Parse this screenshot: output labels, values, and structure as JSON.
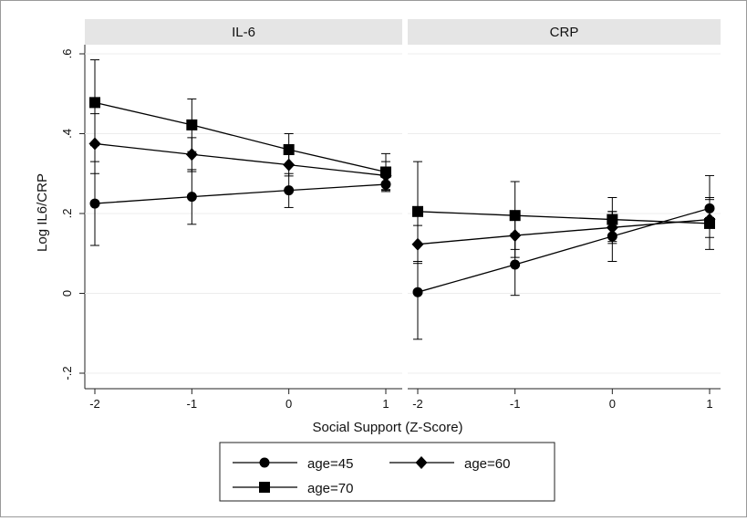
{
  "chart_data": {
    "type": "line",
    "ylabel": "Log IL6/CRP",
    "xlabel": "Social Support (Z-Score)",
    "x": [
      -2,
      -1,
      0,
      1
    ],
    "x_ticks": [
      "-2",
      "-1",
      "0",
      "1"
    ],
    "y_ticks": [
      {
        "value": -0.2,
        "label": "-.2"
      },
      {
        "value": 0,
        "label": "0"
      },
      {
        "value": 0.2,
        "label": ".2"
      },
      {
        "value": 0.4,
        "label": ".4"
      },
      {
        "value": 0.6,
        "label": ".6"
      }
    ],
    "ylim": [
      -0.2,
      0.6
    ],
    "grid": true,
    "legend_position": "bottom",
    "legend": [
      {
        "label": "age=45",
        "marker": "circle"
      },
      {
        "label": "age=60",
        "marker": "diamond"
      },
      {
        "label": "age=70",
        "marker": "square"
      }
    ],
    "panels": [
      {
        "title": "IL-6",
        "series": [
          {
            "name": "age=45",
            "values": [
              0.225,
              0.242,
              0.258,
              0.273
            ],
            "ci_low": [
              0.12,
              0.173,
              0.215,
              0.258
            ],
            "ci_high": [
              0.33,
              0.31,
              0.3,
              0.29
            ]
          },
          {
            "name": "age=60",
            "values": [
              0.375,
              0.348,
              0.322,
              0.295
            ],
            "ci_low": [
              0.3,
              0.305,
              0.294,
              0.26
            ],
            "ci_high": [
              0.45,
              0.39,
              0.35,
              0.33
            ]
          },
          {
            "name": "age=70",
            "values": [
              0.478,
              0.422,
              0.36,
              0.304
            ],
            "ci_low": [
              0.37,
              0.355,
              0.32,
              0.255
            ],
            "ci_high": [
              0.585,
              0.487,
              0.4,
              0.35
            ]
          }
        ]
      },
      {
        "title": "CRP",
        "series": [
          {
            "name": "age=45",
            "values": [
              0.003,
              0.072,
              0.143,
              0.213
            ],
            "ci_low": [
              -0.115,
              -0.005,
              0.08,
              0.19
            ],
            "ci_high": [
              0.12,
              0.15,
              0.205,
              0.295
            ]
          },
          {
            "name": "age=60",
            "values": [
              0.123,
              0.145,
              0.165,
              0.185
            ],
            "ci_low": [
              0.075,
              0.09,
              0.125,
              0.14
            ],
            "ci_high": [
              0.17,
              0.2,
              0.205,
              0.235
            ]
          },
          {
            "name": "age=70",
            "values": [
              0.205,
              0.195,
              0.185,
              0.175
            ],
            "ci_low": [
              0.08,
              0.11,
              0.13,
              0.11
            ],
            "ci_high": [
              0.33,
              0.28,
              0.24,
              0.24
            ]
          }
        ]
      }
    ]
  }
}
